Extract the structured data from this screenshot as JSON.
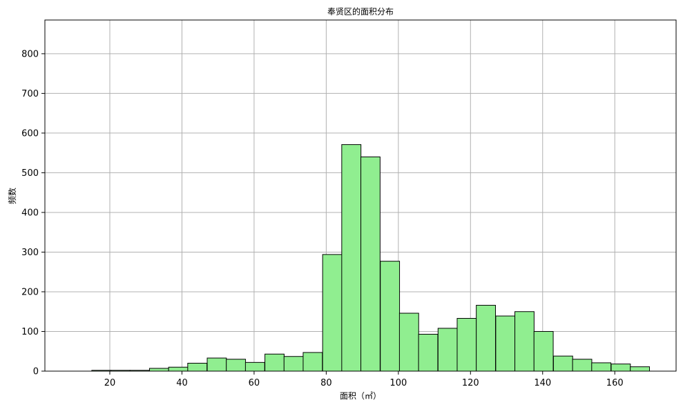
{
  "chart_data": {
    "type": "bar",
    "title": "奉贤区的面积分布",
    "xlabel": "面积（㎡）",
    "ylabel": "频数",
    "xlim": [
      2,
      177
    ],
    "ylim": [
      0,
      885
    ],
    "xticks": [
      20,
      40,
      60,
      80,
      100,
      120,
      140,
      160
    ],
    "yticks": [
      0,
      100,
      200,
      300,
      400,
      500,
      600,
      700,
      800
    ],
    "grid": true,
    "bar_color": "#90ee90",
    "edge_color": "#000000",
    "bin_width": 5.33,
    "bins": [
      {
        "x0": 9.6,
        "value": 0
      },
      {
        "x0": 15.0,
        "value": 2
      },
      {
        "x0": 20.3,
        "value": 2
      },
      {
        "x0": 25.6,
        "value": 2
      },
      {
        "x0": 31.0,
        "value": 7
      },
      {
        "x0": 36.3,
        "value": 10
      },
      {
        "x0": 41.6,
        "value": 20
      },
      {
        "x0": 47.0,
        "value": 33
      },
      {
        "x0": 52.3,
        "value": 30
      },
      {
        "x0": 57.6,
        "value": 22
      },
      {
        "x0": 63.0,
        "value": 43
      },
      {
        "x0": 68.3,
        "value": 37
      },
      {
        "x0": 73.6,
        "value": 47
      },
      {
        "x0": 79.0,
        "value": 294
      },
      {
        "x0": 84.3,
        "value": 571
      },
      {
        "x0": 89.6,
        "value": 540
      },
      {
        "x0": 95.0,
        "value": 277
      },
      {
        "x0": 100.3,
        "value": 146
      },
      {
        "x0": 105.6,
        "value": 93
      },
      {
        "x0": 111.0,
        "value": 108
      },
      {
        "x0": 116.3,
        "value": 133
      },
      {
        "x0": 121.6,
        "value": 166
      },
      {
        "x0": 127.0,
        "value": 139
      },
      {
        "x0": 132.3,
        "value": 150
      },
      {
        "x0": 137.6,
        "value": 100
      },
      {
        "x0": 143.0,
        "value": 38
      },
      {
        "x0": 148.3,
        "value": 30
      },
      {
        "x0": 153.6,
        "value": 21
      },
      {
        "x0": 159.0,
        "value": 18
      },
      {
        "x0": 164.3,
        "value": 11
      }
    ]
  }
}
